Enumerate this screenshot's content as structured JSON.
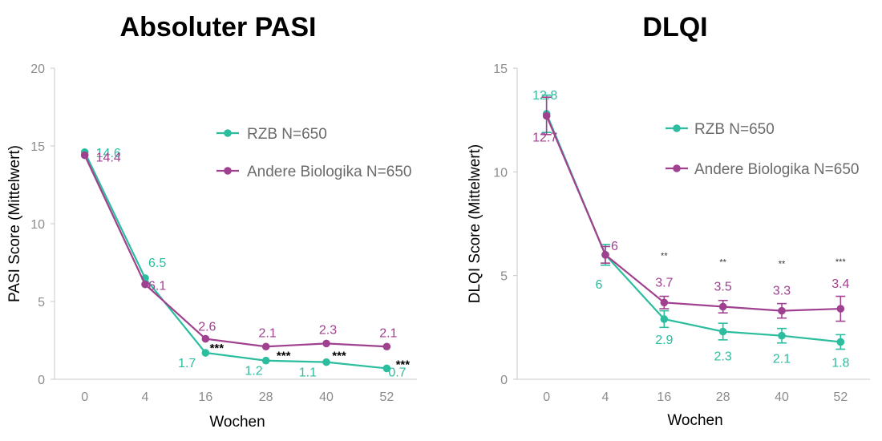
{
  "colors": {
    "teal": "#2bbd9e",
    "magenta": "#a0418f",
    "axis": "#c8c8c8",
    "tick_text": "#8c8c8c"
  },
  "chart_data": [
    {
      "type": "line",
      "title": "Absoluter PASI",
      "xlabel": "Wochen",
      "ylabel": "PASI Score  (Mittelwert)",
      "x": [
        "0",
        "4",
        "16",
        "28",
        "40",
        "52"
      ],
      "ylim": [
        0,
        20
      ],
      "yticks": [
        "0",
        "5",
        "10",
        "15",
        "20"
      ],
      "grid": false,
      "legend_position": "upper-right",
      "series": [
        {
          "name": "RZB N=650",
          "color": "#2bbd9e",
          "values": [
            14.6,
            6.5,
            1.7,
            1.2,
            1.1,
            0.7
          ],
          "labels": [
            "14.6",
            "6.5",
            "1.7",
            "1.2",
            "1.1",
            "0.7"
          ]
        },
        {
          "name": "Andere Biologika N=650",
          "color": "#a0418f",
          "values": [
            14.4,
            6.1,
            2.6,
            2.1,
            2.3,
            2.1
          ],
          "labels": [
            "14.4",
            "6.1",
            "2.6",
            "2.1",
            "2.3",
            "2.1"
          ]
        }
      ],
      "significance": [
        "",
        "",
        "***",
        "***",
        "***",
        "***"
      ]
    },
    {
      "type": "line",
      "title": "DLQI",
      "xlabel": "Wochen",
      "ylabel": "DLQI Score (Mittelwert)",
      "x": [
        "0",
        "4",
        "16",
        "28",
        "40",
        "52"
      ],
      "ylim": [
        0,
        15
      ],
      "yticks": [
        "0",
        "5",
        "10",
        "15"
      ],
      "grid": false,
      "error_bars": true,
      "legend_position": "upper-right",
      "series": [
        {
          "name": "RZB N=650",
          "color": "#2bbd9e",
          "values": [
            12.8,
            6.0,
            2.9,
            2.3,
            2.1,
            1.8
          ],
          "labels": [
            "12.8",
            "6",
            "2.9",
            "2.3",
            "2.1",
            "1.8"
          ],
          "error": [
            0.9,
            0.5,
            0.4,
            0.4,
            0.35,
            0.35
          ]
        },
        {
          "name": "Andere Biologika N=650",
          "color": "#a0418f",
          "values": [
            12.7,
            6.0,
            3.7,
            3.5,
            3.3,
            3.4
          ],
          "labels": [
            "12.7",
            "6",
            "3.7",
            "3.5",
            "3.3",
            "3.4"
          ],
          "error": [
            0.9,
            0.4,
            0.3,
            0.3,
            0.35,
            0.6
          ]
        }
      ],
      "significance": [
        "",
        "",
        "**",
        "**",
        "**",
        "***"
      ]
    }
  ]
}
